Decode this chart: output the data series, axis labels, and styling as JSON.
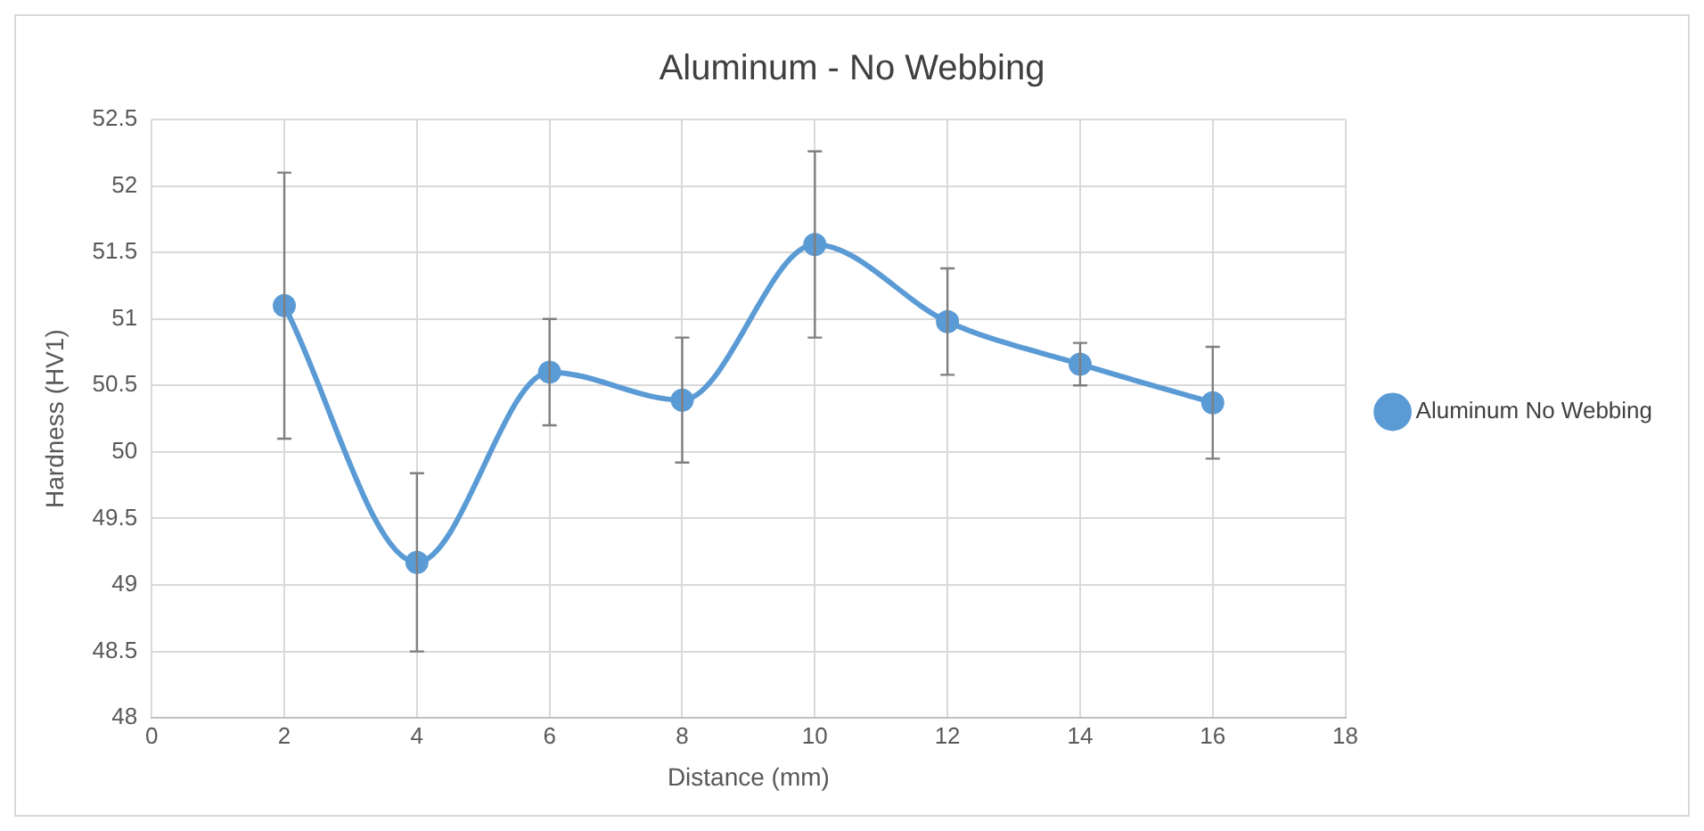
{
  "chart_data": {
    "type": "line",
    "title": "Aluminum - No Webbing",
    "xlabel": "Distance (mm)",
    "ylabel": "Hardness (HV1)",
    "x": [
      2,
      4,
      6,
      8,
      10,
      12,
      14,
      16
    ],
    "series": [
      {
        "name": "Aluminum No Webbing",
        "color": "#5b9bd5",
        "values": [
          51.1,
          49.17,
          50.6,
          50.39,
          51.56,
          50.98,
          50.66,
          50.37
        ],
        "errors": [
          1.0,
          0.67,
          0.4,
          0.47,
          0.7,
          0.4,
          0.16,
          0.42
        ]
      }
    ],
    "xlim": [
      0,
      18
    ],
    "xticks": [
      0,
      2,
      4,
      6,
      8,
      10,
      12,
      14,
      16,
      18
    ],
    "ylim": [
      48,
      52.5
    ],
    "yticks": [
      48,
      48.5,
      49,
      49.5,
      50,
      50.5,
      51,
      51.5,
      52,
      52.5
    ],
    "grid": true,
    "legend": "right",
    "marker": "circle",
    "line_style": "solid"
  }
}
